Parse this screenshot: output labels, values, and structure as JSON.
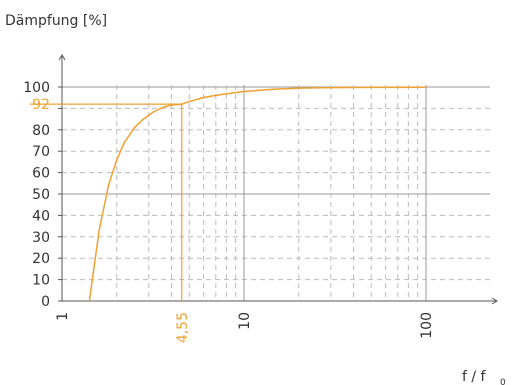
{
  "chart_data": {
    "type": "line",
    "title": "",
    "ylabel": "Dämpfung [%]",
    "xlabel_main": "f / f",
    "xlabel_sub": "0",
    "x_scale": "log",
    "xlim": [
      1,
      200
    ],
    "ylim": [
      0,
      100
    ],
    "grid": true,
    "y_ticks": [
      "0",
      "10",
      "20",
      "30",
      "40",
      "50",
      "60",
      "70",
      "80",
      "90",
      "100"
    ],
    "x_ticks": [
      {
        "value": 1,
        "label": "1"
      },
      {
        "value": 10,
        "label": "10"
      },
      {
        "value": 100,
        "label": "100"
      }
    ],
    "series": [
      {
        "x": [
          1.414,
          1.6,
          1.8,
          2.0,
          2.2,
          2.5,
          2.8,
          3.2,
          3.6,
          4.0,
          4.55,
          5.0,
          6.0,
          7.0,
          8.0,
          10,
          14,
          20,
          30,
          50,
          70,
          100
        ],
        "y": [
          0,
          33,
          54,
          66,
          74,
          81,
          85,
          88.5,
          90.5,
          91.6,
          92,
          93.2,
          95.1,
          96.1,
          96.8,
          97.9,
          98.9,
          99.5,
          99.7,
          99.8,
          99.85,
          99.9
        ]
      }
    ],
    "annotations": [
      {
        "axis": "y",
        "value": 92,
        "label": "92"
      },
      {
        "axis": "x",
        "value": 4.55,
        "label": "4,55"
      }
    ]
  },
  "colors": {
    "curve": "#F0A030",
    "annotation": "#F0A030",
    "grid_major": "#999999",
    "grid_minor": "#bbbbbb",
    "axis": "#555555",
    "text": "#333333"
  }
}
